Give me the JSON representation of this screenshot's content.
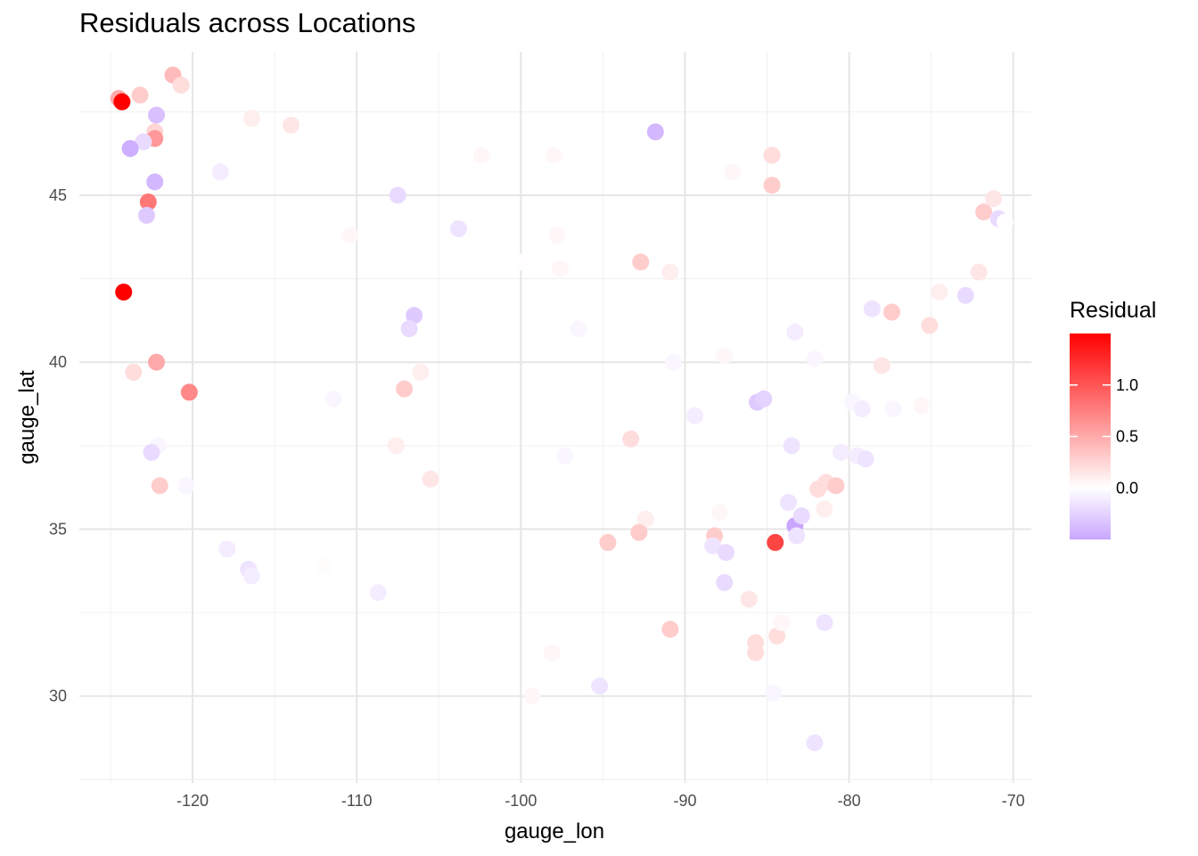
{
  "chart_data": {
    "type": "scatter",
    "title": "Residuals across Locations",
    "xlabel": "gauge_lon",
    "ylabel": "gauge_lat",
    "xlim": [
      -126.9,
      -68.9
    ],
    "ylim": [
      27.4,
      49.3
    ],
    "x_ticks": [
      -120,
      -110,
      -100,
      -90,
      -80,
      -70
    ],
    "y_ticks": [
      30,
      35,
      40,
      45
    ],
    "x_tick_labels": [
      "-120",
      "-110",
      "-100",
      "-90",
      "-80",
      "-70"
    ],
    "y_tick_labels": [
      "30",
      "35",
      "40",
      "45"
    ],
    "grid": true,
    "legend": {
      "title": "Residual",
      "placement": "right",
      "labels": [
        "1.0",
        "0.5",
        "0.0"
      ],
      "values": [
        1.0,
        0.5,
        0.0
      ],
      "range": [
        -0.5,
        1.5
      ]
    },
    "color_scale": {
      "low": "#c9a6ff",
      "mid": "#ffffff",
      "high": "#ff0000"
    },
    "points": [
      {
        "x": -124.5,
        "y": 47.9,
        "r": 0.5
      },
      {
        "x": -124.3,
        "y": 47.8,
        "r": 1.5
      },
      {
        "x": -123.2,
        "y": 48.0,
        "r": 0.3
      },
      {
        "x": -121.2,
        "y": 48.6,
        "r": 0.4
      },
      {
        "x": -120.7,
        "y": 48.3,
        "r": 0.2
      },
      {
        "x": -122.2,
        "y": 47.4,
        "r": -0.35
      },
      {
        "x": -122.3,
        "y": 46.9,
        "r": 0.25
      },
      {
        "x": -122.3,
        "y": 46.7,
        "r": 0.6
      },
      {
        "x": -123.0,
        "y": 46.6,
        "r": -0.2
      },
      {
        "x": -123.8,
        "y": 46.4,
        "r": -0.45
      },
      {
        "x": -122.3,
        "y": 45.4,
        "r": -0.4
      },
      {
        "x": -122.7,
        "y": 44.8,
        "r": 0.8
      },
      {
        "x": -122.8,
        "y": 44.4,
        "r": -0.3
      },
      {
        "x": -124.2,
        "y": 42.1,
        "r": 1.5
      },
      {
        "x": -122.2,
        "y": 40.0,
        "r": 0.5
      },
      {
        "x": -123.6,
        "y": 39.7,
        "r": 0.2
      },
      {
        "x": -120.2,
        "y": 39.1,
        "r": 0.7
      },
      {
        "x": -122.1,
        "y": 37.5,
        "r": -0.05
      },
      {
        "x": -122.5,
        "y": 37.3,
        "r": -0.2
      },
      {
        "x": -122.0,
        "y": 36.3,
        "r": 0.3
      },
      {
        "x": -120.4,
        "y": 36.3,
        "r": -0.05
      },
      {
        "x": -116.4,
        "y": 47.3,
        "r": 0.1
      },
      {
        "x": -114.0,
        "y": 47.1,
        "r": 0.15
      },
      {
        "x": -118.3,
        "y": 45.7,
        "r": -0.1
      },
      {
        "x": -110.4,
        "y": 43.8,
        "r": 0.05
      },
      {
        "x": -107.5,
        "y": 45.0,
        "r": -0.2
      },
      {
        "x": -103.8,
        "y": 44.0,
        "r": -0.15
      },
      {
        "x": -102.4,
        "y": 46.2,
        "r": 0.05
      },
      {
        "x": -106.5,
        "y": 41.4,
        "r": -0.3
      },
      {
        "x": -106.8,
        "y": 41.0,
        "r": -0.2
      },
      {
        "x": -106.1,
        "y": 39.7,
        "r": 0.1
      },
      {
        "x": -107.1,
        "y": 39.2,
        "r": 0.3
      },
      {
        "x": -111.4,
        "y": 38.9,
        "r": -0.05
      },
      {
        "x": -107.6,
        "y": 37.5,
        "r": 0.1
      },
      {
        "x": -105.5,
        "y": 36.5,
        "r": 0.15
      },
      {
        "x": -117.9,
        "y": 34.4,
        "r": -0.1
      },
      {
        "x": -116.6,
        "y": 33.8,
        "r": -0.15
      },
      {
        "x": -116.4,
        "y": 33.6,
        "r": -0.1
      },
      {
        "x": -108.7,
        "y": 33.1,
        "r": -0.1
      },
      {
        "x": -112.0,
        "y": 33.9,
        "r": 0.02
      },
      {
        "x": -91.8,
        "y": 46.9,
        "r": -0.4
      },
      {
        "x": -98.0,
        "y": 46.2,
        "r": 0.05
      },
      {
        "x": -97.8,
        "y": 43.8,
        "r": 0.05
      },
      {
        "x": -97.6,
        "y": 42.8,
        "r": 0.05
      },
      {
        "x": -99.9,
        "y": 43.0,
        "r": 0.01
      },
      {
        "x": -96.5,
        "y": 41.0,
        "r": -0.05
      },
      {
        "x": -92.7,
        "y": 43.0,
        "r": 0.3
      },
      {
        "x": -90.9,
        "y": 42.7,
        "r": 0.1
      },
      {
        "x": -90.7,
        "y": 40.0,
        "r": -0.05
      },
      {
        "x": -89.4,
        "y": 38.4,
        "r": -0.1
      },
      {
        "x": -87.1,
        "y": 45.7,
        "r": 0.05
      },
      {
        "x": -84.7,
        "y": 46.2,
        "r": 0.2
      },
      {
        "x": -84.7,
        "y": 45.3,
        "r": 0.3
      },
      {
        "x": -97.3,
        "y": 37.2,
        "r": -0.05
      },
      {
        "x": -93.3,
        "y": 37.7,
        "r": 0.2
      },
      {
        "x": -92.4,
        "y": 35.3,
        "r": 0.1
      },
      {
        "x": -92.8,
        "y": 34.9,
        "r": 0.3
      },
      {
        "x": -94.7,
        "y": 34.6,
        "r": 0.3
      },
      {
        "x": -87.6,
        "y": 40.2,
        "r": 0.05
      },
      {
        "x": -85.6,
        "y": 38.8,
        "r": -0.3
      },
      {
        "x": -85.2,
        "y": 38.9,
        "r": -0.25
      },
      {
        "x": -87.9,
        "y": 35.5,
        "r": 0.05
      },
      {
        "x": -88.2,
        "y": 34.8,
        "r": 0.3
      },
      {
        "x": -88.3,
        "y": 34.5,
        "r": -0.15
      },
      {
        "x": -87.5,
        "y": 34.3,
        "r": -0.2
      },
      {
        "x": -84.5,
        "y": 34.6,
        "r": 1.1
      },
      {
        "x": -83.3,
        "y": 35.1,
        "r": -0.5
      },
      {
        "x": -83.7,
        "y": 35.8,
        "r": -0.15
      },
      {
        "x": -82.9,
        "y": 35.4,
        "r": -0.2
      },
      {
        "x": -83.2,
        "y": 34.8,
        "r": -0.15
      },
      {
        "x": -87.6,
        "y": 33.4,
        "r": -0.2
      },
      {
        "x": -86.1,
        "y": 32.9,
        "r": 0.15
      },
      {
        "x": -90.9,
        "y": 32.0,
        "r": 0.3
      },
      {
        "x": -85.7,
        "y": 31.6,
        "r": 0.2
      },
      {
        "x": -85.7,
        "y": 31.3,
        "r": 0.2
      },
      {
        "x": -84.4,
        "y": 31.8,
        "r": 0.2
      },
      {
        "x": -84.1,
        "y": 32.2,
        "r": 0.05
      },
      {
        "x": -81.5,
        "y": 32.2,
        "r": -0.15
      },
      {
        "x": -84.6,
        "y": 30.1,
        "r": -0.05
      },
      {
        "x": -82.1,
        "y": 28.6,
        "r": -0.15
      },
      {
        "x": -95.2,
        "y": 30.3,
        "r": -0.15
      },
      {
        "x": -98.1,
        "y": 31.3,
        "r": 0.05
      },
      {
        "x": -99.3,
        "y": 30.0,
        "r": 0.05
      },
      {
        "x": -83.5,
        "y": 37.5,
        "r": -0.15
      },
      {
        "x": -80.5,
        "y": 37.3,
        "r": -0.1
      },
      {
        "x": -79.5,
        "y": 37.2,
        "r": -0.1
      },
      {
        "x": -79.0,
        "y": 37.1,
        "r": -0.15
      },
      {
        "x": -81.4,
        "y": 36.4,
        "r": 0.2
      },
      {
        "x": -80.8,
        "y": 36.3,
        "r": 0.3
      },
      {
        "x": -81.9,
        "y": 36.2,
        "r": 0.2
      },
      {
        "x": -81.5,
        "y": 35.6,
        "r": 0.1
      },
      {
        "x": -79.8,
        "y": 38.8,
        "r": -0.05
      },
      {
        "x": -79.2,
        "y": 38.6,
        "r": -0.1
      },
      {
        "x": -77.3,
        "y": 38.6,
        "r": -0.05
      },
      {
        "x": -75.6,
        "y": 38.7,
        "r": 0.05
      },
      {
        "x": -78.0,
        "y": 39.9,
        "r": 0.15
      },
      {
        "x": -82.1,
        "y": 40.1,
        "r": -0.05
      },
      {
        "x": -83.3,
        "y": 40.9,
        "r": -0.1
      },
      {
        "x": -78.6,
        "y": 41.6,
        "r": -0.15
      },
      {
        "x": -77.4,
        "y": 41.5,
        "r": 0.3
      },
      {
        "x": -75.1,
        "y": 41.1,
        "r": 0.2
      },
      {
        "x": -74.5,
        "y": 42.1,
        "r": 0.1
      },
      {
        "x": -72.9,
        "y": 42.0,
        "r": -0.2
      },
      {
        "x": -72.1,
        "y": 42.7,
        "r": 0.15
      },
      {
        "x": -71.8,
        "y": 44.5,
        "r": 0.3
      },
      {
        "x": -71.2,
        "y": 44.9,
        "r": 0.15
      },
      {
        "x": -70.9,
        "y": 44.3,
        "r": -0.2
      },
      {
        "x": -70.5,
        "y": 44.2,
        "r": 0.01
      }
    ]
  }
}
